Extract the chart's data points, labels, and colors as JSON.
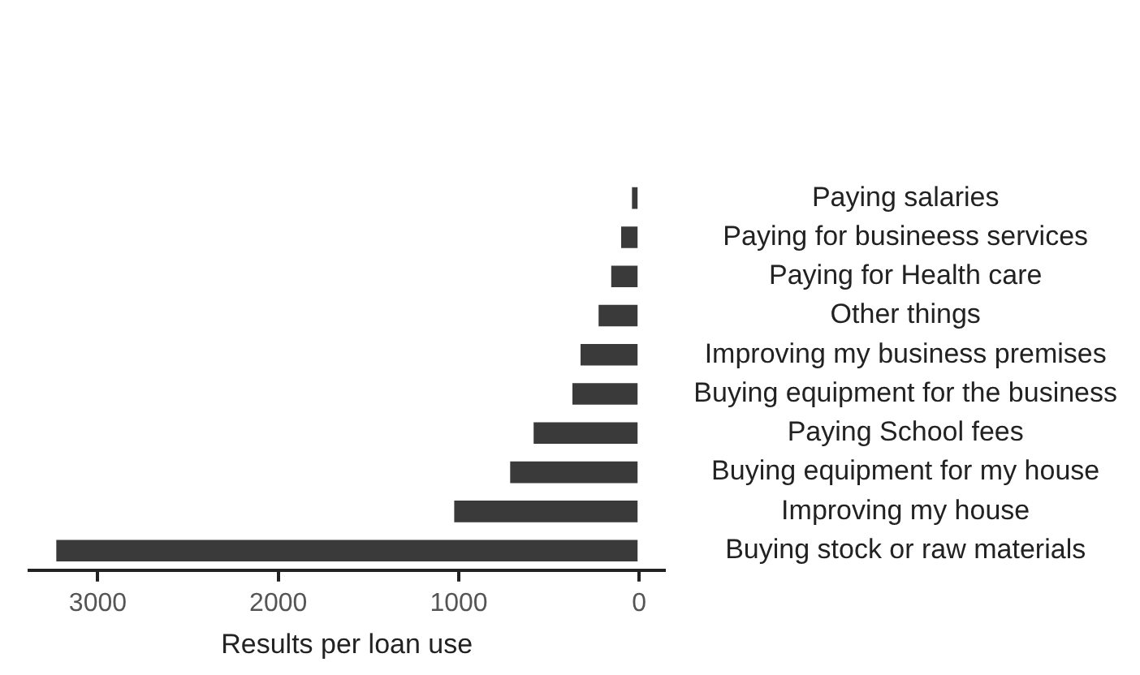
{
  "chart_data": {
    "type": "bar",
    "orientation": "horizontal",
    "xlabel": "Results per loan use",
    "categories": [
      "Paying salaries",
      "Paying for busineess services",
      "Paying for Health care",
      "Other things",
      "Improving my business premises",
      "Buying equipment for the business",
      "Paying School fees",
      "Buying equipment for my house",
      "Improving my house",
      "Buying stock or raw materials"
    ],
    "values": [
      40,
      100,
      155,
      225,
      325,
      370,
      585,
      715,
      1025,
      3230
    ],
    "color": "#3a3a3a",
    "xlim": [
      3380,
      -140
    ],
    "xticks": [
      3000,
      2000,
      1000,
      0
    ],
    "grid": false
  }
}
